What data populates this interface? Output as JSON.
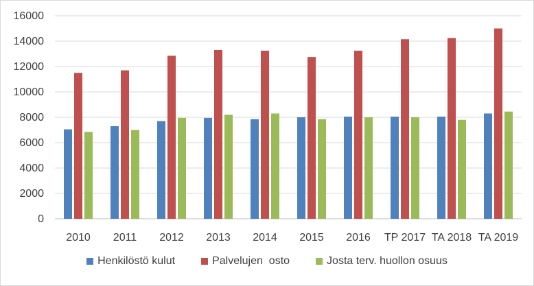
{
  "chart_data": {
    "type": "bar",
    "title": "",
    "xlabel": "",
    "ylabel": "",
    "ylim": [
      0,
      16000
    ],
    "yticks": [
      0,
      2000,
      4000,
      6000,
      8000,
      10000,
      12000,
      14000,
      16000
    ],
    "grid": true,
    "legend_position": "bottom",
    "categories": [
      "2010",
      "2011",
      "2012",
      "2013",
      "2014",
      "2015",
      "2016",
      "TP 2017",
      "TA 2018",
      "TA 2019"
    ],
    "series": [
      {
        "name": "Henkilöstö kulut",
        "color": "#4f81bd",
        "values": [
          7050,
          7300,
          7700,
          7950,
          7850,
          8000,
          8050,
          8050,
          8050,
          8300
        ]
      },
      {
        "name": "Palvelujen  osto",
        "color": "#c0504d",
        "values": [
          11500,
          11700,
          12850,
          13300,
          13250,
          12750,
          13250,
          14150,
          14250,
          15000
        ]
      },
      {
        "name": "Josta terv. huollon osuus",
        "color": "#9bbb59",
        "values": [
          6850,
          7000,
          7950,
          8200,
          8300,
          7850,
          8000,
          8000,
          7800,
          8450
        ]
      }
    ]
  }
}
